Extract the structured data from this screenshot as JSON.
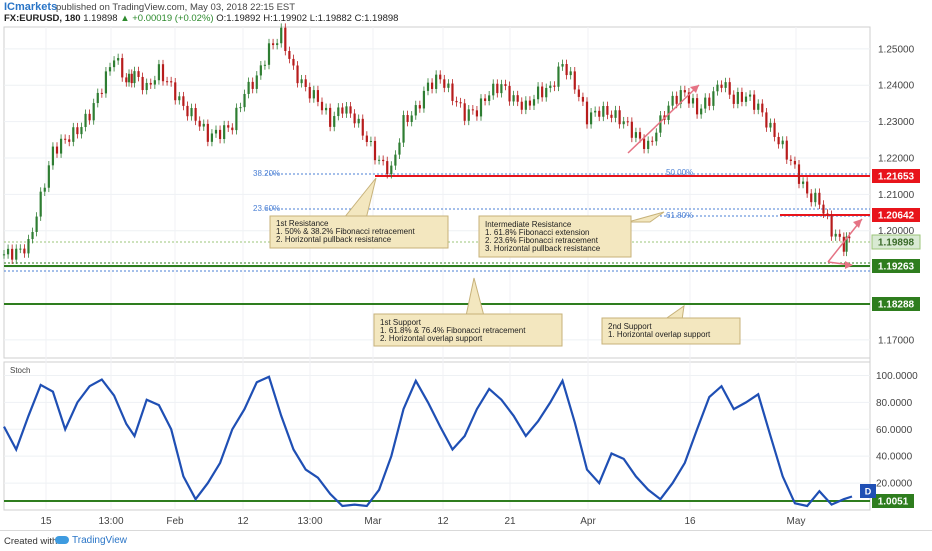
{
  "header": {
    "brand": "ICmarkets",
    "published": "published on TradingView.com, May 03, 2018 22:15 EST",
    "symbol": "FX:EURUSD, 180",
    "last": "1.19898",
    "change": "+0.00019 (+0.02%)",
    "ohlc": "O:1.19892 H:1.19902 L:1.19882 C:1.19898"
  },
  "footer": {
    "created_with": "Created with",
    "logo_text": "TradingView"
  },
  "colors": {
    "up": "#2e7d32",
    "down": "#b71c1c",
    "resistance": "#e8141b",
    "support": "#2e7d1e",
    "stoch": "#1f4fb4",
    "fib": "#4a7fd4",
    "arrow": "#e57384"
  },
  "chart_data": [
    {
      "type": "candlestick",
      "title": "",
      "ylim": [
        1.165,
        1.256
      ],
      "y_ticks": [
        "1.25000",
        "1.24000",
        "1.23000",
        "1.22000",
        "1.21000",
        "1.20000",
        "1.19000",
        "1.18000",
        "1.17000"
      ],
      "x_ticks": [
        "15",
        "13:00",
        "Feb",
        "12",
        "13:00",
        "Mar",
        "12",
        "21",
        "Apr",
        "16",
        "May"
      ],
      "series": [
        {
          "name": "EURUSD close (approx.)",
          "x": [
            0,
            3,
            6,
            9,
            12,
            15,
            18,
            21,
            24,
            27,
            30,
            32,
            35,
            38,
            41,
            44,
            47,
            50,
            53,
            56,
            59,
            62,
            65,
            68,
            71,
            74,
            77,
            80,
            83,
            86,
            89,
            92,
            95,
            98,
            101,
            104,
            107,
            110,
            113,
            116,
            119,
            122,
            125,
            128,
            131,
            134,
            137,
            140,
            143,
            146,
            149,
            152,
            155,
            158,
            161,
            164,
            167,
            170,
            173,
            176,
            179,
            182,
            185,
            188,
            191,
            194,
            197,
            200,
            203,
            206,
            208
          ],
          "values": [
            1.1935,
            1.194,
            1.196,
            1.209,
            1.222,
            1.225,
            1.2275,
            1.232,
            1.2395,
            1.248,
            1.241,
            1.243,
            1.239,
            1.244,
            1.2395,
            1.234,
            1.231,
            1.226,
            1.227,
            1.229,
            1.238,
            1.242,
            1.25,
            1.254,
            1.244,
            1.239,
            1.236,
            1.23,
            1.234,
            1.231,
            1.225,
            1.219,
            1.2165,
            1.23,
            1.233,
            1.24,
            1.242,
            1.237,
            1.232,
            1.233,
            1.238,
            1.24,
            1.236,
            1.234,
            1.238,
            1.239,
            1.246,
            1.24,
            1.231,
            1.233,
            1.232,
            1.23,
            1.226,
            1.223,
            1.23,
            1.236,
            1.238,
            1.233,
            1.236,
            1.241,
            1.236,
            1.237,
            1.234,
            1.228,
            1.223,
            1.217,
            1.21,
            1.208,
            1.2,
            1.196,
            1.199
          ]
        }
      ],
      "price_labels": [
        {
          "label": "1.21653",
          "value": 1.21653,
          "kind": "resistance"
        },
        {
          "label": "1.20642",
          "value": 1.20642,
          "kind": "resistance"
        },
        {
          "label": "1.19898",
          "value": 1.19898,
          "kind": "last"
        },
        {
          "label": "1.19263",
          "value": 1.19263,
          "kind": "support"
        },
        {
          "label": "1.18288",
          "value": 1.18288,
          "kind": "support"
        }
      ],
      "fib_labels": [
        "38.20%",
        "23.60%",
        "50.00%",
        "61.80%"
      ],
      "annotations": [
        {
          "title": "1st Resistance",
          "lines": [
            "1. 50% & 38.2% Fibonacci retracement",
            "2. Horizontal pullback resistance"
          ]
        },
        {
          "title": "Intermediate Resistance",
          "lines": [
            "1. 61.8% Fibonacci extension",
            "2. 23.6% Fibonacci retracement",
            "3. Horizontal pullback resistance"
          ]
        },
        {
          "title": "1st Support",
          "lines": [
            "1. 61.8% & 76.4% Fibonacci retracement",
            "2. Horizontal overlap support"
          ]
        },
        {
          "title": "2nd Support",
          "lines": [
            "1. Horizontal overlap support"
          ]
        }
      ]
    },
    {
      "type": "line",
      "title": "Stoch",
      "ylim": [
        0,
        110
      ],
      "y_ticks": [
        "100.0000",
        "80.0000",
        "60.0000",
        "40.0000",
        "20.0000"
      ],
      "series": [
        {
          "name": "",
          "x": [
            0,
            3,
            6,
            9,
            12,
            15,
            18,
            21,
            24,
            27,
            30,
            32,
            35,
            38,
            41,
            44,
            47,
            50,
            53,
            56,
            59,
            62,
            65,
            68,
            71,
            74,
            77,
            80,
            83,
            86,
            89,
            92,
            95,
            98,
            101,
            104,
            107,
            110,
            113,
            116,
            119,
            122,
            125,
            128,
            131,
            134,
            137,
            140,
            143,
            146,
            149,
            152,
            155,
            158,
            161,
            164,
            167,
            170,
            173,
            176,
            179,
            182,
            185,
            188,
            191,
            194,
            197,
            200,
            203,
            206,
            208
          ],
          "values": [
            62,
            45,
            70,
            93,
            88,
            60,
            80,
            92,
            97,
            85,
            64,
            55,
            82,
            78,
            60,
            25,
            8,
            20,
            35,
            60,
            75,
            95,
            99,
            70,
            45,
            30,
            24,
            12,
            3,
            4,
            3,
            15,
            40,
            75,
            96,
            80,
            62,
            45,
            55,
            75,
            90,
            82,
            70,
            55,
            66,
            80,
            96,
            65,
            30,
            20,
            42,
            38,
            25,
            15,
            8,
            20,
            35,
            60,
            84,
            92,
            75,
            80,
            86,
            55,
            25,
            5,
            3,
            14,
            4,
            8,
            10
          ]
        }
      ],
      "price_labels": [
        {
          "label": "1.0051",
          "value": 1.0051,
          "kind": "support"
        }
      ],
      "badge": "D"
    }
  ]
}
